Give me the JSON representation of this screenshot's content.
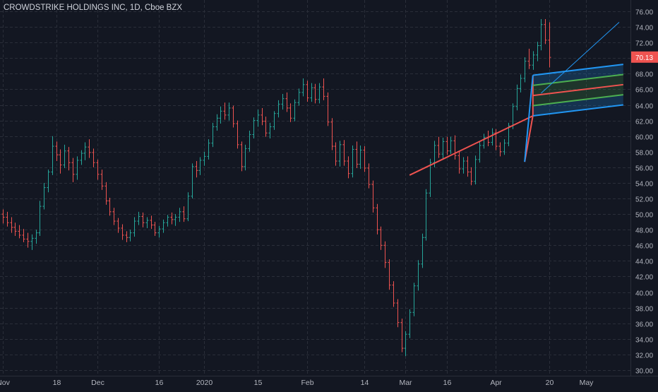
{
  "chart_data": {
    "type": "ohlc",
    "title": "CROWDSTRIKE HOLDINGS INC, 1D, Cboe BZX",
    "last_price_label": "70.13",
    "last_price": 70.13,
    "ylim": [
      29.5,
      76.8
    ],
    "y_ticks": [
      "30.00",
      "32.00",
      "34.00",
      "36.00",
      "38.00",
      "40.00",
      "42.00",
      "44.00",
      "46.00",
      "48.00",
      "50.00",
      "52.00",
      "54.00",
      "56.00",
      "58.00",
      "60.00",
      "62.00",
      "64.00",
      "66.00",
      "68.00",
      "70.00",
      "72.00",
      "74.00",
      "76.00"
    ],
    "x_ticks": [
      {
        "label": "Nov",
        "bar": 0
      },
      {
        "label": "18",
        "bar": 13
      },
      {
        "label": "Dec",
        "bar": 23
      },
      {
        "label": "16",
        "bar": 38
      },
      {
        "label": "2020",
        "bar": 49
      },
      {
        "label": "15",
        "bar": 62
      },
      {
        "label": "Feb",
        "bar": 74
      },
      {
        "label": "14",
        "bar": 88
      },
      {
        "label": "Mar",
        "bar": 98
      },
      {
        "label": "16",
        "bar": 108
      },
      {
        "label": "Apr",
        "bar": 120
      },
      {
        "label": "20",
        "bar": 133
      },
      {
        "label": "May",
        "bar": 142
      }
    ],
    "grid": true,
    "up_color": "#26a69a",
    "down_color": "#ef5350",
    "ohlc": [
      [
        50.0,
        50.6,
        48.8,
        49.6
      ],
      [
        49.6,
        50.3,
        48.4,
        48.9
      ],
      [
        48.9,
        49.6,
        47.6,
        48.3
      ],
      [
        48.3,
        48.9,
        47.2,
        47.8
      ],
      [
        47.8,
        48.6,
        46.9,
        47.3
      ],
      [
        47.3,
        48.1,
        46.4,
        46.8
      ],
      [
        46.8,
        47.6,
        45.7,
        46.5
      ],
      [
        46.5,
        47.4,
        45.4,
        46.9
      ],
      [
        46.9,
        48.0,
        46.2,
        47.6
      ],
      [
        47.6,
        51.7,
        47.2,
        51.0
      ],
      [
        51.0,
        54.0,
        50.6,
        53.4
      ],
      [
        53.4,
        55.7,
        52.8,
        55.4
      ],
      [
        55.4,
        60.0,
        55.0,
        58.7
      ],
      [
        58.7,
        59.3,
        56.8,
        57.6
      ],
      [
        57.6,
        58.3,
        55.2,
        56.3
      ],
      [
        56.3,
        58.9,
        55.9,
        58.1
      ],
      [
        58.1,
        58.6,
        55.6,
        56.6
      ],
      [
        56.6,
        57.2,
        54.1,
        55.1
      ],
      [
        55.1,
        57.4,
        54.4,
        56.9
      ],
      [
        56.9,
        58.2,
        56.3,
        57.8
      ],
      [
        57.8,
        59.2,
        56.9,
        58.6
      ],
      [
        58.6,
        59.6,
        57.2,
        57.9
      ],
      [
        57.9,
        58.4,
        56.0,
        56.6
      ],
      [
        56.6,
        57.0,
        54.4,
        55.1
      ],
      [
        55.1,
        55.7,
        53.1,
        53.6
      ],
      [
        53.6,
        54.1,
        51.2,
        51.7
      ],
      [
        51.7,
        52.1,
        49.8,
        50.3
      ],
      [
        50.3,
        50.8,
        48.6,
        49.1
      ],
      [
        49.1,
        49.5,
        47.6,
        48.2
      ],
      [
        48.2,
        48.7,
        46.7,
        47.3
      ],
      [
        47.3,
        47.8,
        46.4,
        47.0
      ],
      [
        47.0,
        48.0,
        46.5,
        47.6
      ],
      [
        47.6,
        49.6,
        47.1,
        49.1
      ],
      [
        49.1,
        50.3,
        48.6,
        49.7
      ],
      [
        49.7,
        50.2,
        48.3,
        48.9
      ],
      [
        48.9,
        49.6,
        48.2,
        49.2
      ],
      [
        49.2,
        49.8,
        48.1,
        48.6
      ],
      [
        48.6,
        49.0,
        47.2,
        47.6
      ],
      [
        47.6,
        48.5,
        47.0,
        48.1
      ],
      [
        48.1,
        49.3,
        47.6,
        48.9
      ],
      [
        48.9,
        49.9,
        48.4,
        49.6
      ],
      [
        49.6,
        50.2,
        48.7,
        49.3
      ],
      [
        49.3,
        50.0,
        48.5,
        49.6
      ],
      [
        49.6,
        50.8,
        49.0,
        50.3
      ],
      [
        50.3,
        51.0,
        49.0,
        49.4
      ],
      [
        49.4,
        52.8,
        49.1,
        52.3
      ],
      [
        52.3,
        56.5,
        52.0,
        56.1
      ],
      [
        56.1,
        56.8,
        54.7,
        55.6
      ],
      [
        55.6,
        57.3,
        55.0,
        56.9
      ],
      [
        56.9,
        58.0,
        56.2,
        57.4
      ],
      [
        57.4,
        59.6,
        57.0,
        59.1
      ],
      [
        59.1,
        61.7,
        58.6,
        61.2
      ],
      [
        61.2,
        62.8,
        60.7,
        62.3
      ],
      [
        62.3,
        63.8,
        61.6,
        63.2
      ],
      [
        63.2,
        64.3,
        62.1,
        62.7
      ],
      [
        62.7,
        64.3,
        62.0,
        63.6
      ],
      [
        63.6,
        63.9,
        61.1,
        61.6
      ],
      [
        61.6,
        62.0,
        58.4,
        58.9
      ],
      [
        58.9,
        59.3,
        55.5,
        56.1
      ],
      [
        56.1,
        58.9,
        55.6,
        58.4
      ],
      [
        58.4,
        60.7,
        58.0,
        60.2
      ],
      [
        60.2,
        62.4,
        59.7,
        62.0
      ],
      [
        62.0,
        63.4,
        61.2,
        62.7
      ],
      [
        62.7,
        63.6,
        61.4,
        61.9
      ],
      [
        61.9,
        62.5,
        59.9,
        60.4
      ],
      [
        60.4,
        61.7,
        59.7,
        61.2
      ],
      [
        61.2,
        63.2,
        60.8,
        62.9
      ],
      [
        62.9,
        64.6,
        62.4,
        64.1
      ],
      [
        64.1,
        65.4,
        63.4,
        64.8
      ],
      [
        64.8,
        65.6,
        63.1,
        63.6
      ],
      [
        63.6,
        64.2,
        61.8,
        62.3
      ],
      [
        62.3,
        64.7,
        61.9,
        64.3
      ],
      [
        64.3,
        66.1,
        63.9,
        65.6
      ],
      [
        65.6,
        67.4,
        65.1,
        66.6
      ],
      [
        66.6,
        67.1,
        64.4,
        64.9
      ],
      [
        64.9,
        66.8,
        64.4,
        66.2
      ],
      [
        66.2,
        66.7,
        64.2,
        64.7
      ],
      [
        64.7,
        66.8,
        64.2,
        66.3
      ],
      [
        66.3,
        67.4,
        64.6,
        65.1
      ],
      [
        65.1,
        65.6,
        61.3,
        61.8
      ],
      [
        61.8,
        62.3,
        58.2,
        58.7
      ],
      [
        58.7,
        59.2,
        56.2,
        56.8
      ],
      [
        56.8,
        59.4,
        56.1,
        58.9
      ],
      [
        58.9,
        59.5,
        56.2,
        56.8
      ],
      [
        56.8,
        57.4,
        54.6,
        55.2
      ],
      [
        55.2,
        58.8,
        54.7,
        58.3
      ],
      [
        58.3,
        59.3,
        55.9,
        56.4
      ],
      [
        56.4,
        58.8,
        55.8,
        58.2
      ],
      [
        58.2,
        58.7,
        55.4,
        55.9
      ],
      [
        55.9,
        56.5,
        53.3,
        53.8
      ],
      [
        53.8,
        54.3,
        50.2,
        50.8
      ],
      [
        50.8,
        51.3,
        47.4,
        48.0
      ],
      [
        48.0,
        48.4,
        45.4,
        46.0
      ],
      [
        46.0,
        46.5,
        43.1,
        43.8
      ],
      [
        43.8,
        44.2,
        40.3,
        40.9
      ],
      [
        40.9,
        41.4,
        38.1,
        38.6
      ],
      [
        38.6,
        39.1,
        35.5,
        36.1
      ],
      [
        36.1,
        36.6,
        32.3,
        32.8
      ],
      [
        32.8,
        35.0,
        31.8,
        34.6
      ],
      [
        34.6,
        37.8,
        34.1,
        37.4
      ],
      [
        37.4,
        41.2,
        36.9,
        40.8
      ],
      [
        40.8,
        44.1,
        40.2,
        43.6
      ],
      [
        43.6,
        47.5,
        43.1,
        47.0
      ],
      [
        47.0,
        53.2,
        46.6,
        52.7
      ],
      [
        52.7,
        57.1,
        52.2,
        56.6
      ],
      [
        56.6,
        59.4,
        56.0,
        58.8
      ],
      [
        58.8,
        59.9,
        57.2,
        57.7
      ],
      [
        57.7,
        59.8,
        57.1,
        59.3
      ],
      [
        59.3,
        59.9,
        57.6,
        58.1
      ],
      [
        58.1,
        59.9,
        57.7,
        59.4
      ],
      [
        59.4,
        60.1,
        57.0,
        57.5
      ],
      [
        57.5,
        58.1,
        55.2,
        55.8
      ],
      [
        55.8,
        57.3,
        55.2,
        56.8
      ],
      [
        56.8,
        57.4,
        54.8,
        55.4
      ],
      [
        55.4,
        56.0,
        53.7,
        54.2
      ],
      [
        54.2,
        57.5,
        53.8,
        57.0
      ],
      [
        57.0,
        59.3,
        56.6,
        58.8
      ],
      [
        58.8,
        60.3,
        58.4,
        59.8
      ],
      [
        59.8,
        60.7,
        58.7,
        59.2
      ],
      [
        59.2,
        61.0,
        58.8,
        60.4
      ],
      [
        60.4,
        60.9,
        58.2,
        58.7
      ],
      [
        58.7,
        59.2,
        57.4,
        58.0
      ],
      [
        58.0,
        59.6,
        57.6,
        59.1
      ],
      [
        59.1,
        61.7,
        58.7,
        61.3
      ],
      [
        61.3,
        64.2,
        60.9,
        63.8
      ],
      [
        63.8,
        66.6,
        63.3,
        66.1
      ],
      [
        66.1,
        67.9,
        65.6,
        67.4
      ],
      [
        67.4,
        70.1,
        66.9,
        69.6
      ],
      [
        69.6,
        71.2,
        68.6,
        69.1
      ],
      [
        69.1,
        70.9,
        68.5,
        70.4
      ],
      [
        70.4,
        72.1,
        69.6,
        71.6
      ],
      [
        71.6,
        75.0,
        71.0,
        74.3
      ],
      [
        74.3,
        75.0,
        71.8,
        72.3
      ],
      [
        72.3,
        74.6,
        68.8,
        70.1
      ]
    ],
    "drawings": [
      {
        "kind": "trend_line",
        "color": "#ef5350",
        "p1": {
          "bar": 99,
          "price": 55.0
        },
        "p2": {
          "bar": 129,
          "price": 62.6
        }
      },
      {
        "kind": "pitchfork",
        "outer_color": "#2196f3",
        "inner_color": "#4caf50",
        "median_color": "#ef5350",
        "pivot": {
          "bar": 127,
          "price": 56.7
        },
        "a": {
          "bar": 129,
          "price": 62.6
        },
        "b": {
          "bar": 129,
          "price": 67.8
        },
        "extend_to_bar": 151
      },
      {
        "kind": "trend_line",
        "color": "#2196f3",
        "p1": {
          "bar": 131,
          "price": 65.5
        },
        "p2": {
          "bar": 150,
          "price": 74.6
        }
      }
    ]
  }
}
